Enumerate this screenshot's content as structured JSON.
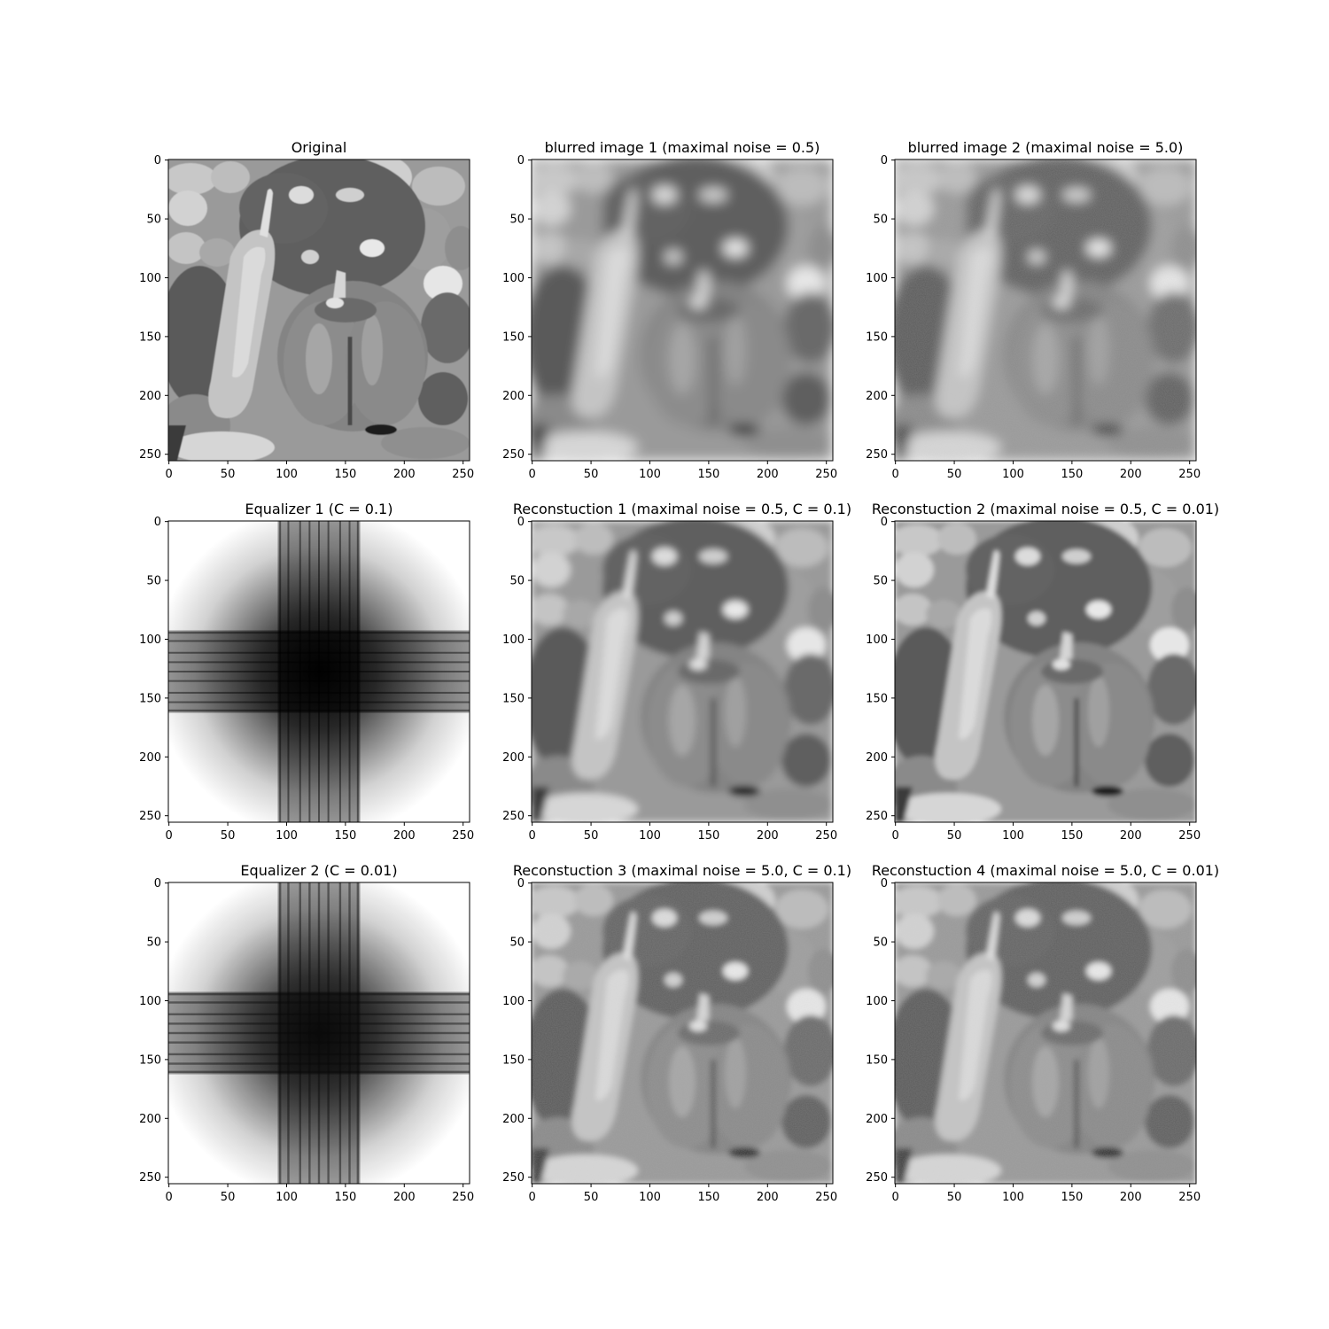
{
  "figure": {
    "panels": [
      {
        "title": "Original",
        "kind": "peppers",
        "variant": "sharp",
        "x_ticks": [
          "0",
          "50",
          "100",
          "150",
          "200",
          "250"
        ],
        "y_ticks": [
          "0",
          "50",
          "100",
          "150",
          "200",
          "250"
        ]
      },
      {
        "title": "blurred image 1 (maximal noise = 0.5)",
        "kind": "peppers",
        "variant": "blur",
        "x_ticks": [
          "0",
          "50",
          "100",
          "150",
          "200",
          "250"
        ],
        "y_ticks": [
          "0",
          "50",
          "100",
          "150",
          "200",
          "250"
        ]
      },
      {
        "title": "blurred image 2 (maximal noise = 5.0)",
        "kind": "peppers",
        "variant": "blur-noise",
        "x_ticks": [
          "0",
          "50",
          "100",
          "150",
          "200",
          "250"
        ],
        "y_ticks": [
          "0",
          "50",
          "100",
          "150",
          "200",
          "250"
        ]
      },
      {
        "title": "Equalizer 1 (C = 0.1)",
        "kind": "equalizer",
        "variant": "eq1",
        "x_ticks": [
          "0",
          "50",
          "100",
          "150",
          "200",
          "250"
        ],
        "y_ticks": [
          "0",
          "50",
          "100",
          "150",
          "200",
          "250"
        ]
      },
      {
        "title": "Reconstuction 1 (maximal noise = 0.5, C = 0.1)",
        "kind": "peppers",
        "variant": "recon",
        "x_ticks": [
          "0",
          "50",
          "100",
          "150",
          "200",
          "250"
        ],
        "y_ticks": [
          "0",
          "50",
          "100",
          "150",
          "200",
          "250"
        ]
      },
      {
        "title": "Reconstuction 2 (maximal noise = 0.5, C = 0.01)",
        "kind": "peppers",
        "variant": "recon-sharp",
        "x_ticks": [
          "0",
          "50",
          "100",
          "150",
          "200",
          "250"
        ],
        "y_ticks": [
          "0",
          "50",
          "100",
          "150",
          "200",
          "250"
        ]
      },
      {
        "title": "Equalizer 2 (C = 0.01)",
        "kind": "equalizer",
        "variant": "eq2",
        "x_ticks": [
          "0",
          "50",
          "100",
          "150",
          "200",
          "250"
        ],
        "y_ticks": [
          "0",
          "50",
          "100",
          "150",
          "200",
          "250"
        ]
      },
      {
        "title": "Reconstuction 3 (maximal noise = 5.0, C = 0.1)",
        "kind": "peppers",
        "variant": "recon-noise",
        "x_ticks": [
          "0",
          "50",
          "100",
          "150",
          "200",
          "250"
        ],
        "y_ticks": [
          "0",
          "50",
          "100",
          "150",
          "200",
          "250"
        ]
      },
      {
        "title": "Reconstuction 4 (maximal noise = 5.0, C = 0.01)",
        "kind": "peppers",
        "variant": "recon-noise",
        "x_ticks": [
          "0",
          "50",
          "100",
          "150",
          "200",
          "250"
        ],
        "y_ticks": [
          "0",
          "50",
          "100",
          "150",
          "200",
          "250"
        ]
      }
    ]
  }
}
